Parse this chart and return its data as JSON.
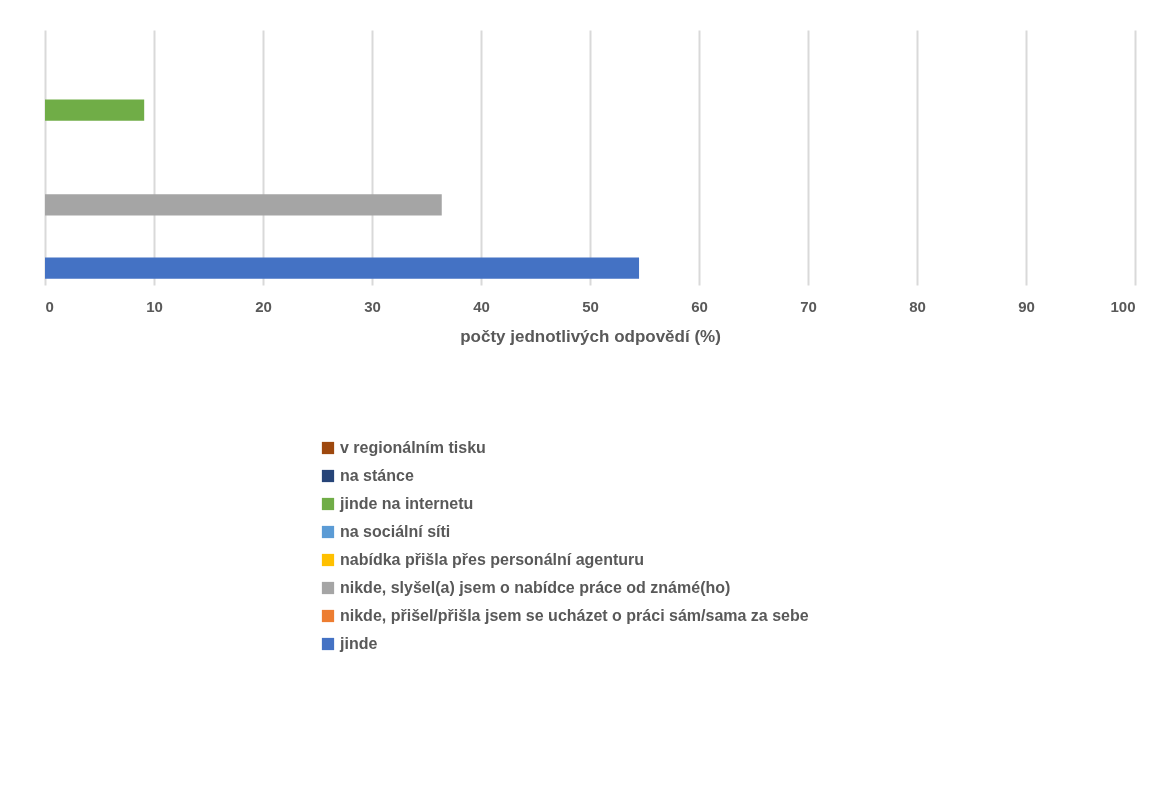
{
  "chart_data": {
    "type": "bar",
    "orientation": "horizontal",
    "categories": [
      null
    ],
    "xlabel": "počty jednotlivých odpovědí (%)",
    "xlim": [
      0,
      100
    ],
    "xticks": [
      0,
      10,
      20,
      30,
      40,
      50,
      60,
      70,
      80,
      90,
      100
    ],
    "grid": "x",
    "legend": "bottom",
    "series": [
      {
        "name": "v regionálním tisku",
        "color": "#9e480e",
        "values": [
          0
        ]
      },
      {
        "name": "na stánce",
        "color": "#264478",
        "values": [
          0
        ]
      },
      {
        "name": "jinde na internetu",
        "color": "#70ad47",
        "values": [
          9.1
        ]
      },
      {
        "name": "na sociální síti",
        "color": "#5b9bd5",
        "values": [
          0
        ]
      },
      {
        "name": "nabídka přišla přes personální agenturu",
        "color": "#ffc000",
        "values": [
          0
        ]
      },
      {
        "name": "nikde, slyšel(a) jsem o nabídce práce od známé(ho)",
        "color": "#a5a5a5",
        "values": [
          36.4
        ]
      },
      {
        "name": "nikde, přišel/přišla jsem se ucházet o práci sám/sama za sebe",
        "color": "#ed7d31",
        "values": [
          0
        ]
      },
      {
        "name": "jinde",
        "color": "#4472c4",
        "values": [
          54.5
        ]
      }
    ]
  }
}
